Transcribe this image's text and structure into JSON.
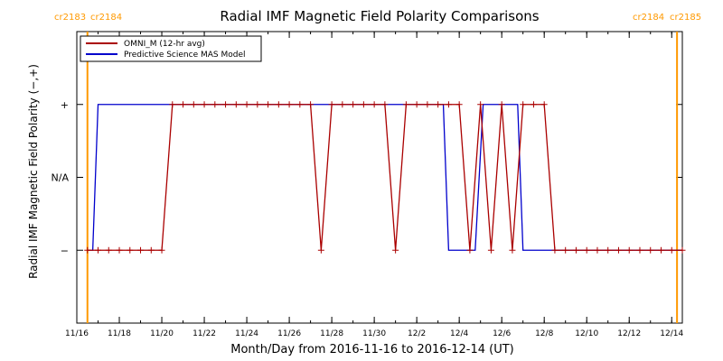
{
  "chart_data": {
    "type": "line",
    "title": "Radial IMF Magnetic Field Polarity Comparisons",
    "xlabel": "Month/Day from 2016-11-16 to 2016-12-14 (UT)",
    "ylabel": "Radial IMF Magnetic Field Polarity (−,+)",
    "x_start": "2016-11-16",
    "x_end": "2016-12-14",
    "xlim": [
      "2016-11-16T00",
      "2016-12-14T12"
    ],
    "x_tick_labels": [
      "11/16",
      "11/18",
      "11/20",
      "11/22",
      "11/24",
      "11/26",
      "11/28",
      "11/30",
      "12/2",
      "12/4",
      "12/6",
      "12/8",
      "12/10",
      "12/12",
      "12/14"
    ],
    "x_tick_dates": [
      "2016-11-16",
      "2016-11-18",
      "2016-11-20",
      "2016-11-22",
      "2016-11-24",
      "2016-11-26",
      "2016-11-28",
      "2016-11-30",
      "2016-12-02",
      "2016-12-04",
      "2016-12-06",
      "2016-12-08",
      "2016-12-10",
      "2016-12-12",
      "2016-12-14"
    ],
    "y_tick_labels": [
      "−",
      "N/A",
      "+"
    ],
    "y_tick_values": [
      -1,
      0,
      1
    ],
    "ylim": [
      -2,
      2
    ],
    "grid": false,
    "legend_position": "top-left",
    "carrington_markers": [
      {
        "date": "2016-11-16T12",
        "left_label": "cr2183",
        "right_label": "cr2184",
        "color": "#ff9900"
      },
      {
        "date": "2016-12-14T06",
        "left_label": "cr2184",
        "right_label": "cr2185",
        "color": "#ff9900"
      }
    ],
    "series": [
      {
        "name": "OMNI_M (12-hr avg)",
        "color": "#aa0000",
        "marker": "plus",
        "points": [
          [
            "2016-11-16T12",
            -1
          ],
          [
            "2016-11-17T00",
            -1
          ],
          [
            "2016-11-17T12",
            -1
          ],
          [
            "2016-11-18T00",
            -1
          ],
          [
            "2016-11-18T12",
            -1
          ],
          [
            "2016-11-19T00",
            -1
          ],
          [
            "2016-11-19T12",
            -1
          ],
          [
            "2016-11-20T00",
            -1
          ],
          [
            "2016-11-20T12",
            1
          ],
          [
            "2016-11-21T00",
            1
          ],
          [
            "2016-11-21T12",
            1
          ],
          [
            "2016-11-22T00",
            1
          ],
          [
            "2016-11-22T12",
            1
          ],
          [
            "2016-11-23T00",
            1
          ],
          [
            "2016-11-23T12",
            1
          ],
          [
            "2016-11-24T00",
            1
          ],
          [
            "2016-11-24T12",
            1
          ],
          [
            "2016-11-25T00",
            1
          ],
          [
            "2016-11-25T12",
            1
          ],
          [
            "2016-11-26T00",
            1
          ],
          [
            "2016-11-26T12",
            1
          ],
          [
            "2016-11-27T00",
            1
          ],
          [
            "2016-11-27T12",
            -1
          ],
          [
            "2016-11-28T00",
            1
          ],
          [
            "2016-11-28T12",
            1
          ],
          [
            "2016-11-29T00",
            1
          ],
          [
            "2016-11-29T12",
            1
          ],
          [
            "2016-11-30T00",
            1
          ],
          [
            "2016-11-30T12",
            1
          ],
          [
            "2016-12-01T00",
            -1
          ],
          [
            "2016-12-01T12",
            1
          ],
          [
            "2016-12-02T00",
            1
          ],
          [
            "2016-12-02T12",
            1
          ],
          [
            "2016-12-03T00",
            1
          ],
          [
            "2016-12-03T12",
            1
          ],
          [
            "2016-12-04T00",
            1
          ],
          [
            "2016-12-04T12",
            -1
          ],
          [
            "2016-12-05T00",
            1
          ],
          [
            "2016-12-05T12",
            -1
          ],
          [
            "2016-12-06T00",
            1
          ],
          [
            "2016-12-06T12",
            -1
          ],
          [
            "2016-12-07T00",
            1
          ],
          [
            "2016-12-07T12",
            1
          ],
          [
            "2016-12-08T00",
            1
          ],
          [
            "2016-12-08T12",
            -1
          ],
          [
            "2016-12-09T00",
            -1
          ],
          [
            "2016-12-09T12",
            -1
          ],
          [
            "2016-12-10T00",
            -1
          ],
          [
            "2016-12-10T12",
            -1
          ],
          [
            "2016-12-11T00",
            -1
          ],
          [
            "2016-12-11T12",
            -1
          ],
          [
            "2016-12-12T00",
            -1
          ],
          [
            "2016-12-12T12",
            -1
          ],
          [
            "2016-12-13T00",
            -1
          ],
          [
            "2016-12-13T12",
            -1
          ],
          [
            "2016-12-14T00",
            -1
          ],
          [
            "2016-12-14T12",
            -1
          ]
        ]
      },
      {
        "name": "Predictive Science MAS Model",
        "color": "#0000cc",
        "marker": "none",
        "points": [
          [
            "2016-11-16T12",
            -1
          ],
          [
            "2016-11-16T18",
            -1
          ],
          [
            "2016-11-17T00",
            1
          ],
          [
            "2016-12-03T06",
            1
          ],
          [
            "2016-12-03T12",
            -1
          ],
          [
            "2016-12-04T18",
            -1
          ],
          [
            "2016-12-05T03",
            1
          ],
          [
            "2016-12-06T18",
            1
          ],
          [
            "2016-12-07T00",
            -1
          ],
          [
            "2016-12-14T12",
            -1
          ]
        ]
      }
    ]
  }
}
